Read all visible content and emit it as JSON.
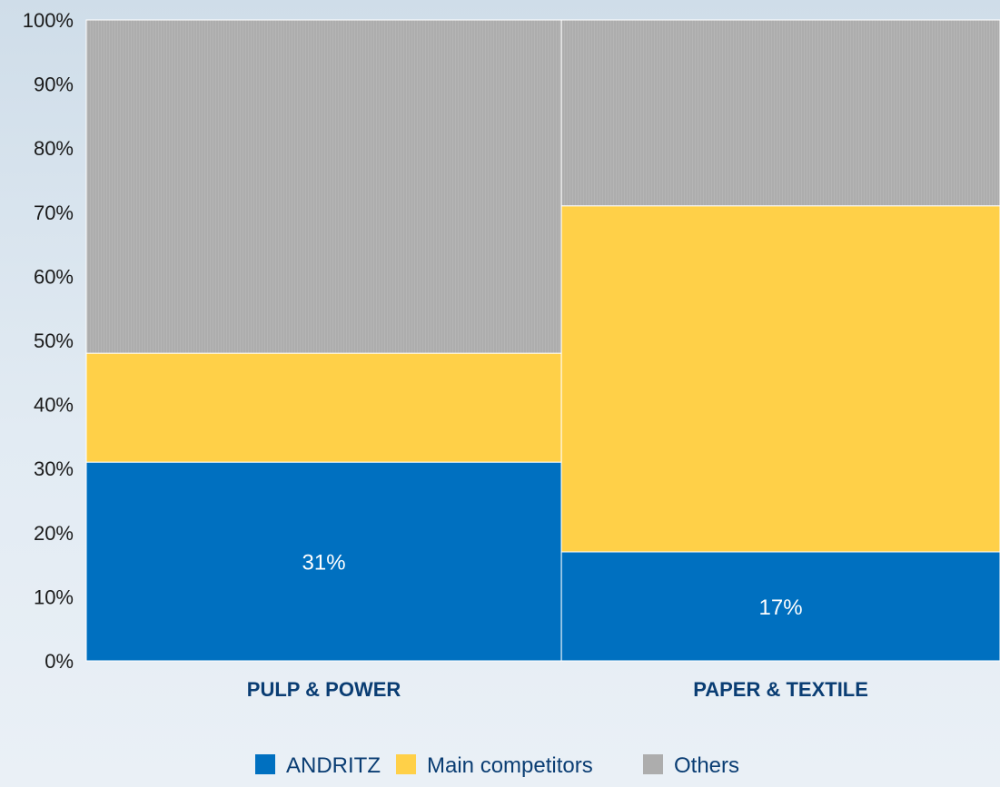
{
  "chart_data": {
    "type": "bar",
    "stacked": true,
    "mekko": true,
    "categories": [
      "PULP & POWER",
      "PAPER & TEXTILE"
    ],
    "category_widths_pct": [
      52,
      48
    ],
    "series": [
      {
        "name": "ANDRITZ",
        "values": [
          31,
          17
        ],
        "color": "#0070c0"
      },
      {
        "name": "Main competitors",
        "values": [
          17,
          54
        ],
        "color": "#ffd048"
      },
      {
        "name": "Others",
        "values": [
          52,
          29
        ],
        "color": "#adadad"
      }
    ],
    "data_labels": [
      "31%",
      "17%"
    ],
    "y_ticks": [
      "0%",
      "10%",
      "20%",
      "30%",
      "40%",
      "50%",
      "60%",
      "70%",
      "80%",
      "90%",
      "100%"
    ],
    "ylim": [
      0,
      100
    ],
    "grid": false,
    "legend_position": "bottom-center"
  }
}
